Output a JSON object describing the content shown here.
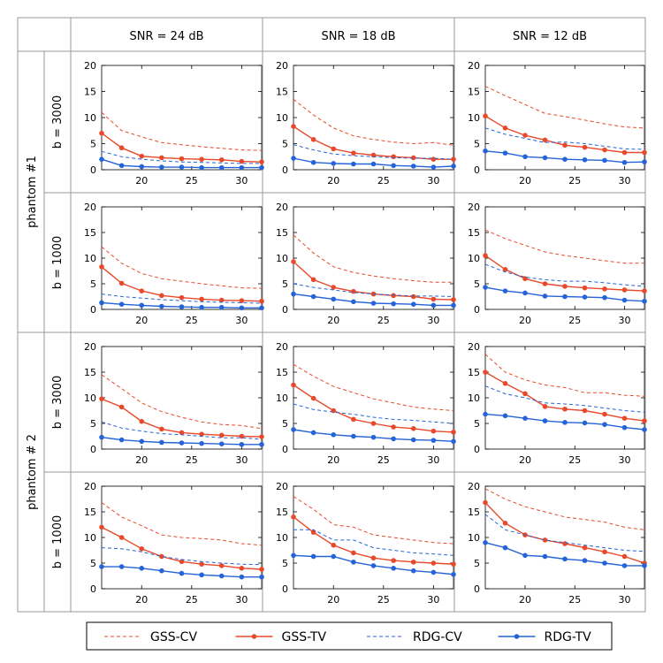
{
  "colors": {
    "gss": "#e8492a",
    "rdg": "#2563d8",
    "grid": "#999999",
    "axis": "#000000"
  },
  "headers": {
    "columns": [
      "SNR = 24 dB",
      "SNR = 18 dB",
      "SNR = 12 dB"
    ],
    "groups": [
      "phantom #1",
      "phantom # 2"
    ],
    "rows": [
      "b = 3000",
      "b = 1000",
      "b = 3000",
      "b = 1000"
    ]
  },
  "legend": [
    {
      "label": "GSS-CV",
      "color": "#e8492a",
      "style": "dashed",
      "marker": false
    },
    {
      "label": "GSS-TV",
      "color": "#e8492a",
      "style": "solid",
      "marker": true
    },
    {
      "label": "RDG-CV",
      "color": "#2563d8",
      "style": "dashed",
      "marker": false
    },
    {
      "label": "RDG-TV",
      "color": "#2563d8",
      "style": "solid",
      "marker": true
    }
  ],
  "chart_data": {
    "type": "line",
    "layout": "grid 4 rows x 3 columns",
    "xlim": [
      16,
      32
    ],
    "ylim": [
      0,
      20
    ],
    "xticks": [
      20,
      25,
      30
    ],
    "yticks": [
      0,
      5,
      10,
      15,
      20
    ],
    "x": [
      16,
      18,
      20,
      22,
      24,
      26,
      28,
      30,
      32
    ],
    "series_names": [
      "GSS-CV",
      "GSS-TV",
      "RDG-CV",
      "RDG-TV"
    ],
    "panels": [
      {
        "row": "phantom #1, b = 3000",
        "column": "SNR = 24 dB",
        "series": [
          {
            "name": "GSS-CV",
            "values": [
              11,
              7.5,
              6.3,
              5.2,
              4.8,
              4.4,
              4.1,
              3.8,
              3.7
            ]
          },
          {
            "name": "GSS-TV",
            "values": [
              7,
              4.2,
              2.6,
              2.3,
              2.1,
              2.0,
              1.9,
              1.6,
              1.5
            ]
          },
          {
            "name": "RDG-CV",
            "values": [
              3.5,
              2.5,
              2.0,
              1.7,
              1.5,
              1.4,
              1.3,
              1.2,
              1.2
            ]
          },
          {
            "name": "RDG-TV",
            "values": [
              2,
              0.8,
              0.6,
              0.5,
              0.5,
              0.4,
              0.4,
              0.4,
              0.4
            ]
          }
        ]
      },
      {
        "row": "phantom #1, b = 3000",
        "column": "SNR = 18 dB",
        "series": [
          {
            "name": "GSS-CV",
            "values": [
              13.5,
              10.5,
              8.0,
              6.5,
              5.8,
              5.3,
              5.0,
              5.2,
              4.7
            ]
          },
          {
            "name": "GSS-TV",
            "values": [
              8.3,
              5.8,
              4.0,
              3.2,
              2.8,
              2.5,
              2.3,
              2.0,
              2.0
            ]
          },
          {
            "name": "RDG-CV",
            "values": [
              4.8,
              3.8,
              3.0,
              2.7,
              2.5,
              2.3,
              2.2,
              2.2,
              2.0
            ]
          },
          {
            "name": "RDG-TV",
            "values": [
              2.2,
              1.4,
              1.2,
              1.1,
              1.1,
              0.8,
              0.7,
              0.5,
              0.7
            ]
          }
        ]
      },
      {
        "row": "phantom #1, b = 3000",
        "column": "SNR = 12 dB",
        "series": [
          {
            "name": "GSS-CV",
            "values": [
              16,
              14.2,
              12.5,
              10.8,
              10.2,
              9.5,
              8.8,
              8.2,
              8.0
            ]
          },
          {
            "name": "GSS-TV",
            "values": [
              10.3,
              8.0,
              6.6,
              5.7,
              4.7,
              4.3,
              3.8,
              3.3,
              3.3
            ]
          },
          {
            "name": "RDG-CV",
            "values": [
              8.0,
              6.8,
              6.0,
              5.2,
              5.3,
              5.0,
              4.5,
              4.0,
              3.9
            ]
          },
          {
            "name": "RDG-TV",
            "values": [
              3.6,
              3.2,
              2.5,
              2.3,
              2.0,
              1.9,
              1.8,
              1.4,
              1.5
            ]
          }
        ]
      },
      {
        "row": "phantom #1, b = 1000",
        "column": "SNR = 24 dB",
        "series": [
          {
            "name": "GSS-CV",
            "values": [
              12.2,
              9.0,
              7.0,
              6.0,
              5.5,
              5.0,
              4.6,
              4.2,
              4.1
            ]
          },
          {
            "name": "GSS-TV",
            "values": [
              8.3,
              5.1,
              3.6,
              2.7,
              2.3,
              2.0,
              1.8,
              1.7,
              1.6
            ]
          },
          {
            "name": "RDG-CV",
            "values": [
              3.0,
              2.5,
              2.2,
              1.9,
              1.7,
              1.5,
              1.4,
              1.3,
              1.2
            ]
          },
          {
            "name": "RDG-TV",
            "values": [
              1.3,
              1.0,
              0.8,
              0.6,
              0.5,
              0.4,
              0.4,
              0.3,
              0.3
            ]
          }
        ]
      },
      {
        "row": "phantom #1, b = 1000",
        "column": "SNR = 18 dB",
        "series": [
          {
            "name": "GSS-CV",
            "values": [
              14.5,
              11.0,
              8.3,
              7.2,
              6.5,
              6.0,
              5.6,
              5.3,
              5.3
            ]
          },
          {
            "name": "GSS-TV",
            "values": [
              9.3,
              5.8,
              4.3,
              3.5,
              3.0,
              2.7,
              2.5,
              2.0,
              1.9
            ]
          },
          {
            "name": "RDG-CV",
            "values": [
              5.0,
              4.3,
              3.8,
              3.3,
              3.0,
              2.8,
              2.6,
              2.6,
              2.5
            ]
          },
          {
            "name": "RDG-TV",
            "values": [
              3.0,
              2.5,
              2.0,
              1.5,
              1.2,
              1.1,
              1.0,
              0.8,
              0.8
            ]
          }
        ]
      },
      {
        "row": "phantom #1, b = 1000",
        "column": "SNR = 12 dB",
        "series": [
          {
            "name": "GSS-CV",
            "values": [
              15.5,
              13.8,
              12.5,
              11.2,
              10.5,
              10.0,
              9.5,
              9.0,
              9.0
            ]
          },
          {
            "name": "GSS-TV",
            "values": [
              10.5,
              7.8,
              6.0,
              5.0,
              4.5,
              4.2,
              4.0,
              3.8,
              3.6
            ]
          },
          {
            "name": "RDG-CV",
            "values": [
              8.8,
              7.3,
              6.3,
              5.8,
              5.5,
              5.5,
              5.2,
              4.8,
              4.5
            ]
          },
          {
            "name": "RDG-TV",
            "values": [
              4.3,
              3.6,
              3.2,
              2.6,
              2.5,
              2.4,
              2.3,
              1.8,
              1.6
            ]
          }
        ]
      },
      {
        "row": "phantom # 2, b = 3000",
        "column": "SNR = 24 dB",
        "series": [
          {
            "name": "GSS-CV",
            "values": [
              14.5,
              11.8,
              9.0,
              7.3,
              6.2,
              5.3,
              4.8,
              4.6,
              4.0
            ]
          },
          {
            "name": "GSS-TV",
            "values": [
              9.8,
              8.2,
              5.4,
              3.9,
              3.2,
              2.9,
              2.7,
              2.5,
              2.4
            ]
          },
          {
            "name": "RDG-CV",
            "values": [
              5.3,
              4.1,
              3.5,
              3.0,
              2.8,
              2.5,
              2.2,
              2.2,
              1.9
            ]
          },
          {
            "name": "RDG-TV",
            "values": [
              2.3,
              1.8,
              1.5,
              1.3,
              1.2,
              1.1,
              1.0,
              0.9,
              0.9
            ]
          }
        ]
      },
      {
        "row": "phantom # 2, b = 3000",
        "column": "SNR = 18 dB",
        "series": [
          {
            "name": "GSS-CV",
            "values": [
              16.5,
              14.2,
              12.2,
              11.0,
              9.8,
              9.0,
              8.2,
              7.8,
              7.5
            ]
          },
          {
            "name": "GSS-TV",
            "values": [
              12.5,
              9.9,
              7.5,
              5.8,
              5.0,
              4.3,
              4.0,
              3.5,
              3.3
            ]
          },
          {
            "name": "RDG-CV",
            "values": [
              8.8,
              7.7,
              7.2,
              6.8,
              6.2,
              5.8,
              5.6,
              5.3,
              5.0
            ]
          },
          {
            "name": "RDG-TV",
            "values": [
              3.8,
              3.2,
              2.8,
              2.5,
              2.3,
              2.0,
              1.8,
              1.7,
              1.5
            ]
          }
        ]
      },
      {
        "row": "phantom # 2, b = 3000",
        "column": "SNR = 12 dB",
        "series": [
          {
            "name": "GSS-CV",
            "values": [
              18.5,
              15.0,
              13.5,
              12.5,
              12.0,
              11.0,
              11.0,
              10.5,
              10.3
            ]
          },
          {
            "name": "GSS-TV",
            "values": [
              15.0,
              12.8,
              10.8,
              8.3,
              7.8,
              7.5,
              6.8,
              6.0,
              5.5
            ]
          },
          {
            "name": "RDG-CV",
            "values": [
              12.3,
              10.8,
              10.0,
              9.0,
              8.8,
              8.5,
              8.0,
              7.5,
              7.2
            ]
          },
          {
            "name": "RDG-TV",
            "values": [
              6.8,
              6.5,
              6.0,
              5.5,
              5.2,
              5.1,
              4.8,
              4.2,
              3.8
            ]
          }
        ]
      },
      {
        "row": "phantom # 2, b = 1000",
        "column": "SNR = 24 dB",
        "series": [
          {
            "name": "GSS-CV",
            "values": [
              16.8,
              14.0,
              12.3,
              10.5,
              10.0,
              9.8,
              9.5,
              8.8,
              8.5
            ]
          },
          {
            "name": "GSS-TV",
            "values": [
              12.0,
              10.0,
              7.8,
              6.3,
              5.3,
              4.8,
              4.5,
              4.0,
              3.8
            ]
          },
          {
            "name": "RDG-CV",
            "values": [
              8.0,
              7.8,
              7.2,
              6.3,
              5.7,
              5.3,
              5.0,
              4.8,
              4.7
            ]
          },
          {
            "name": "RDG-TV",
            "values": [
              4.3,
              4.3,
              4.0,
              3.5,
              3.0,
              2.7,
              2.5,
              2.3,
              2.3
            ]
          }
        ]
      },
      {
        "row": "phantom # 2, b = 1000",
        "column": "SNR = 18 dB",
        "series": [
          {
            "name": "GSS-CV",
            "values": [
              18.0,
              15.5,
              12.5,
              12.0,
              10.5,
              10.0,
              9.5,
              9.0,
              8.8
            ]
          },
          {
            "name": "GSS-TV",
            "values": [
              14.0,
              11.0,
              8.5,
              7.0,
              6.0,
              5.5,
              5.2,
              5.0,
              4.8
            ]
          },
          {
            "name": "RDG-CV",
            "values": [
              11.5,
              11.5,
              9.5,
              9.5,
              8.0,
              7.5,
              7.0,
              6.8,
              6.5
            ]
          },
          {
            "name": "RDG-TV",
            "values": [
              6.5,
              6.3,
              6.3,
              5.2,
              4.5,
              4.0,
              3.5,
              3.2,
              2.8
            ]
          }
        ]
      },
      {
        "row": "phantom # 2, b = 1000",
        "column": "SNR = 12 dB",
        "series": [
          {
            "name": "GSS-CV",
            "values": [
              19.5,
              17.5,
              16.0,
              15.0,
              14.0,
              13.5,
              13.0,
              12.0,
              11.5
            ]
          },
          {
            "name": "GSS-TV",
            "values": [
              16.8,
              12.8,
              10.5,
              9.5,
              8.8,
              8.0,
              7.2,
              6.3,
              5.0
            ]
          },
          {
            "name": "RDG-CV",
            "values": [
              14.5,
              11.5,
              10.5,
              9.5,
              9.0,
              8.5,
              8.0,
              7.5,
              7.3
            ]
          },
          {
            "name": "RDG-TV",
            "values": [
              9.0,
              8.0,
              6.5,
              6.3,
              5.8,
              5.5,
              5.0,
              4.5,
              4.5
            ]
          }
        ]
      }
    ]
  }
}
